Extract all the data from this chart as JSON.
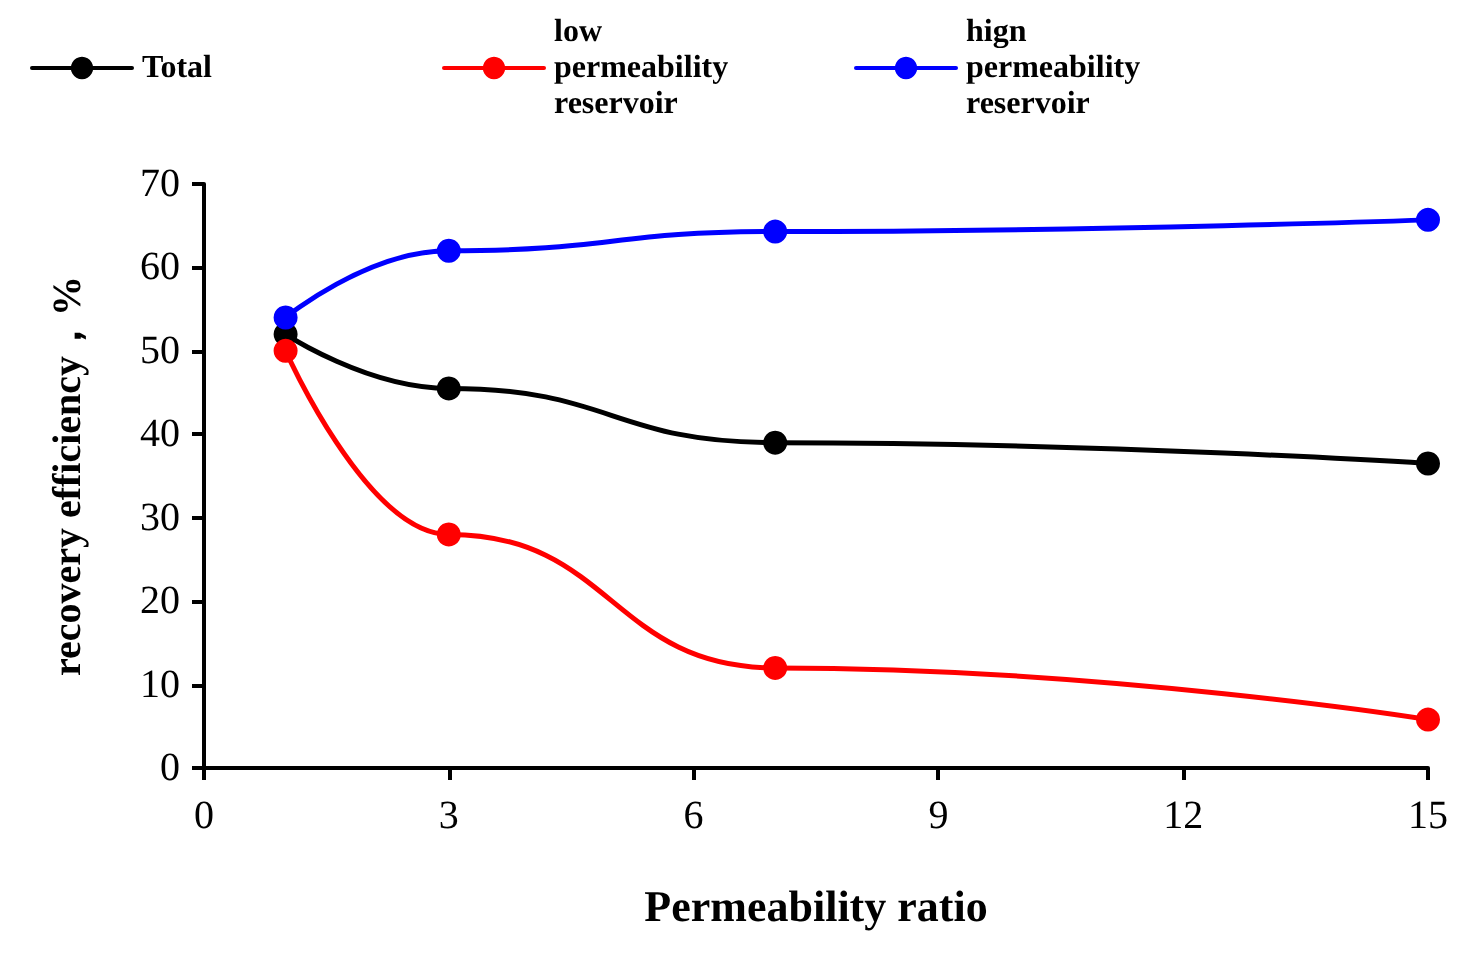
{
  "chart_data": {
    "type": "line",
    "xlabel": "Permeability ratio",
    "ylabel": "recovery efficiency，%",
    "x": [
      1,
      3,
      7,
      15
    ],
    "series": [
      {
        "name": "Total",
        "color": "#000000",
        "values": [
          52,
          45.5,
          39,
          36.5
        ]
      },
      {
        "name": "low permeability reservoir",
        "color": "#ff0000",
        "values": [
          50,
          28,
          12,
          5.8
        ]
      },
      {
        "name": "hign permeability reservoir",
        "color": "#0000ff",
        "values": [
          54,
          62,
          64.3,
          65.7
        ]
      }
    ],
    "xlim": [
      0,
      15
    ],
    "xticks": [
      0,
      3,
      6,
      9,
      12,
      15
    ],
    "ylim": [
      0,
      70
    ],
    "yticks": [
      0,
      10,
      20,
      30,
      40,
      50,
      60,
      70
    ],
    "grid": false,
    "legend": "top",
    "marker": "circle",
    "line_style": "solid"
  }
}
